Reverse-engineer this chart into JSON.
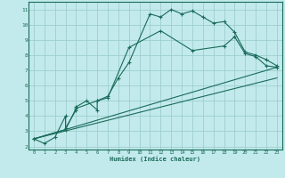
{
  "title": "",
  "xlabel": "Humidex (Indice chaleur)",
  "bg_color": "#c2eaec",
  "grid_color": "#9ecece",
  "line_color": "#1a6b5a",
  "xlim": [
    -0.5,
    23.5
  ],
  "ylim": [
    1.8,
    11.5
  ],
  "xticks": [
    0,
    1,
    2,
    3,
    4,
    5,
    6,
    7,
    8,
    9,
    10,
    11,
    12,
    13,
    14,
    15,
    16,
    17,
    18,
    19,
    20,
    21,
    22,
    23
  ],
  "yticks": [
    2,
    3,
    4,
    5,
    6,
    7,
    8,
    9,
    10,
    11
  ],
  "curve1_x": [
    0,
    1,
    2,
    3,
    3,
    4,
    4,
    5,
    6,
    6,
    7,
    8,
    9,
    11,
    12,
    13,
    14,
    15,
    16,
    17,
    18,
    19,
    20,
    21,
    22,
    23
  ],
  "curve1_y": [
    2.5,
    2.2,
    2.6,
    4.0,
    3.2,
    4.4,
    4.6,
    5.0,
    4.4,
    5.0,
    5.3,
    6.5,
    7.5,
    10.7,
    10.5,
    11.0,
    10.7,
    10.9,
    10.5,
    10.1,
    10.2,
    9.5,
    8.2,
    8.0,
    7.7,
    7.3
  ],
  "curve2_x": [
    0,
    3,
    4,
    6,
    7,
    9,
    12,
    15,
    18,
    19,
    20,
    21,
    22,
    23
  ],
  "curve2_y": [
    2.5,
    3.1,
    4.5,
    5.0,
    5.2,
    8.5,
    9.6,
    8.3,
    8.6,
    9.2,
    8.1,
    7.9,
    7.3,
    7.2
  ],
  "curve3_x": [
    0,
    23
  ],
  "curve3_y": [
    2.5,
    7.2
  ],
  "curve4_x": [
    0,
    23
  ],
  "curve4_y": [
    2.5,
    6.5
  ]
}
